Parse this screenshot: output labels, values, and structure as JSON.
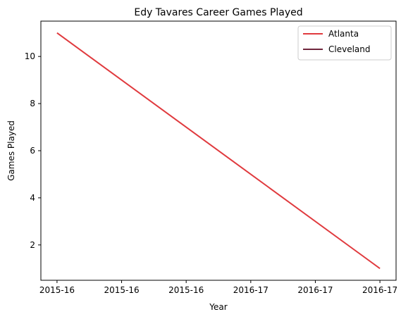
{
  "chart_data": {
    "type": "line",
    "title": "Edy Tavares Career Games Played",
    "xlabel": "Year",
    "ylabel": "Games Played",
    "x_ticks": [
      "2015-16",
      "2015-16",
      "2015-16",
      "2016-17",
      "2016-17",
      "2016-17"
    ],
    "y_ticks": [
      2,
      4,
      6,
      8,
      10
    ],
    "xlim": [
      -0.25,
      5.25
    ],
    "ylim": [
      0.5,
      11.5
    ],
    "grid": false,
    "legend_position": "top-right",
    "series": [
      {
        "name": "Atlanta",
        "color": "#e03a3e",
        "x": [
          0,
          5
        ],
        "values": [
          11,
          1
        ]
      },
      {
        "name": "Cleveland",
        "color": "#6f263d",
        "x": [],
        "values": []
      }
    ]
  }
}
